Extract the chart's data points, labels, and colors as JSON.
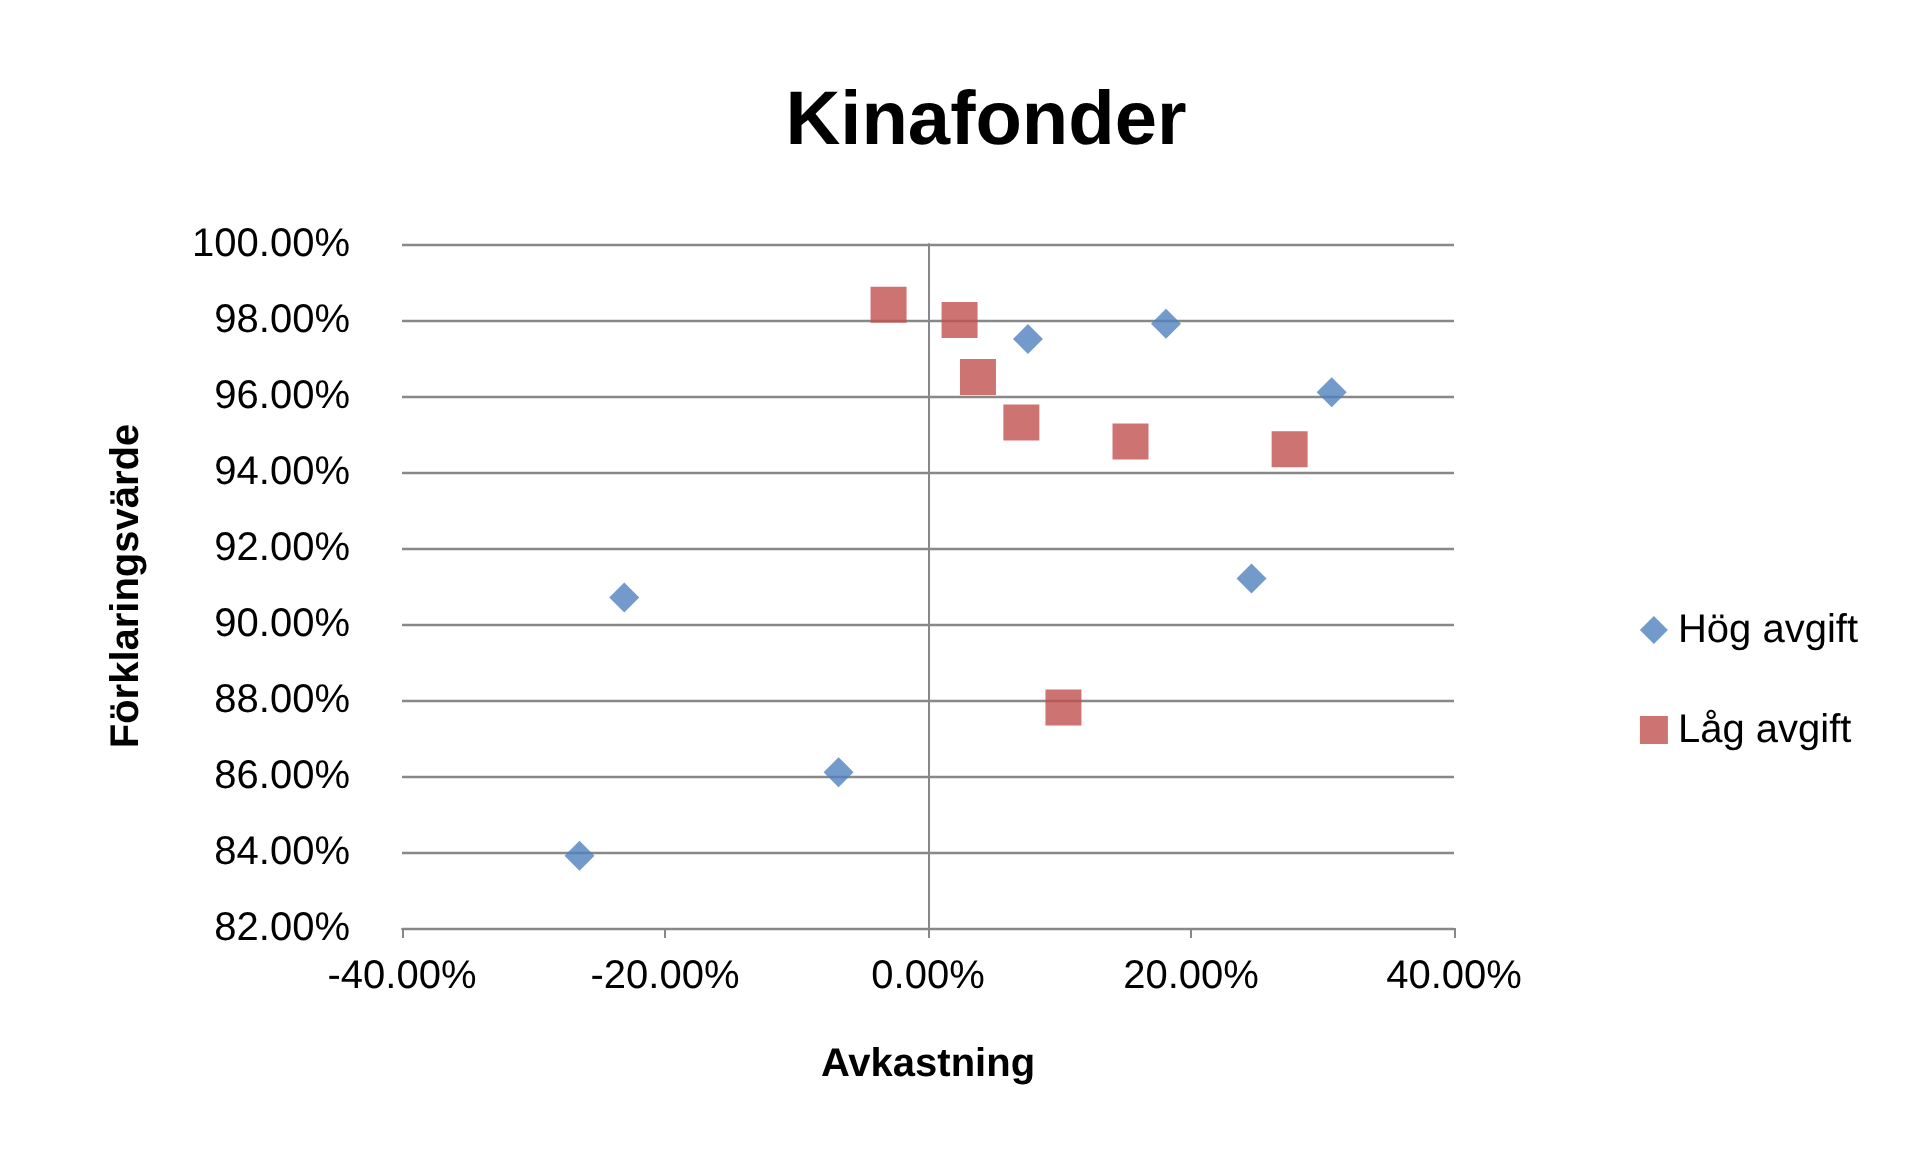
{
  "chart_data": {
    "type": "scatter",
    "title": "Kinafonder",
    "xlabel": "Avkastning",
    "ylabel": "Förklaringsvärde",
    "series": [
      {
        "name": "Hög avgift",
        "color": "#4f81bd",
        "marker": "diamond",
        "x": [
          -26.5,
          -23.1,
          -6.8,
          7.6,
          18.1,
          24.6,
          30.7
        ],
        "values": [
          83.9,
          90.7,
          86.1,
          97.5,
          97.9,
          91.2,
          96.1
        ]
      },
      {
        "name": "Låg avgift",
        "color": "#c0504d",
        "marker": "square",
        "x": [
          -3.0,
          2.4,
          3.8,
          7.1,
          15.4,
          27.5,
          10.3
        ],
        "values": [
          98.4,
          98.0,
          96.5,
          95.3,
          94.8,
          94.6,
          87.8
        ]
      }
    ],
    "xlim": [
      -40,
      40
    ],
    "xticks": [
      {
        "value": -40,
        "label": "-40.00%"
      },
      {
        "value": -20,
        "label": "-20.00%"
      },
      {
        "value": 0,
        "label": "0.00%"
      },
      {
        "value": 20,
        "label": "20.00%"
      },
      {
        "value": 40,
        "label": "40.00%"
      }
    ],
    "ylim": [
      82,
      100
    ],
    "yticks": [
      {
        "value": 82,
        "label": "82.00%"
      },
      {
        "value": 84,
        "label": "84.00%"
      },
      {
        "value": 86,
        "label": "86.00%"
      },
      {
        "value": 88,
        "label": "88.00%"
      },
      {
        "value": 90,
        "label": "90.00%"
      },
      {
        "value": 92,
        "label": "92.00%"
      },
      {
        "value": 94,
        "label": "94.00%"
      },
      {
        "value": 96,
        "label": "96.00%"
      },
      {
        "value": 98,
        "label": "98.00%"
      },
      {
        "value": 100,
        "label": "100.00%"
      }
    ],
    "grid": "y",
    "legend": "right"
  }
}
